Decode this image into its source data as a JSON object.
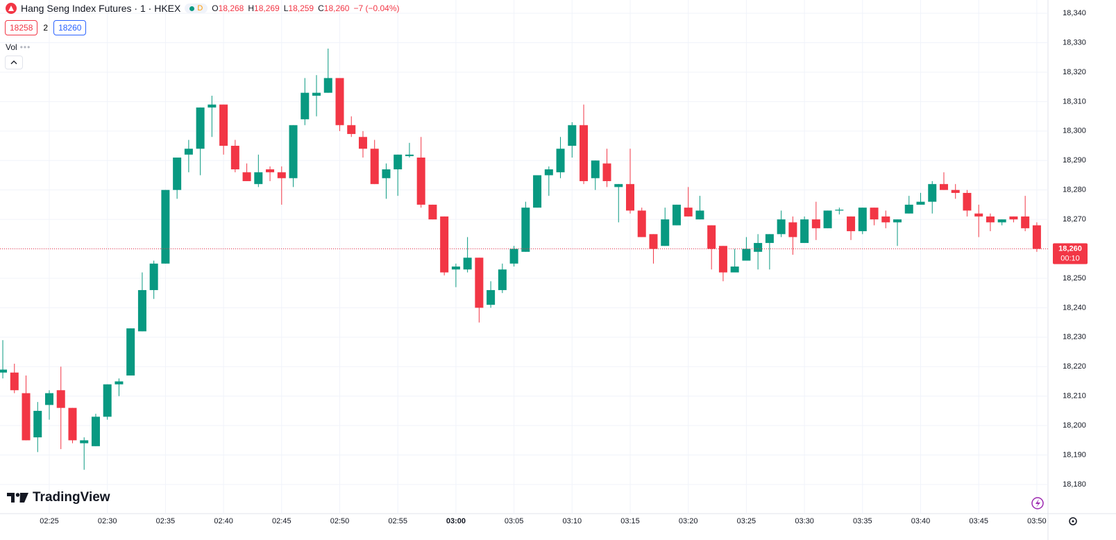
{
  "header": {
    "title": "Hang Seng Index Futures · 1 · HKEX",
    "badge": "D",
    "ohlc": [
      {
        "key": "O",
        "value": "18,268"
      },
      {
        "key": "H",
        "value": "18,269"
      },
      {
        "key": "L",
        "value": "18,259"
      },
      {
        "key": "C",
        "value": "18,260"
      }
    ],
    "change": "−7 (−0.04%)"
  },
  "trade": {
    "sell": "18258",
    "spread": "2",
    "buy": "18260"
  },
  "indicator": "Vol",
  "logo": "TradingView",
  "chart_data": {
    "type": "candlestick",
    "categories": [
      null,
      null,
      null,
      null,
      "02:25",
      null,
      null,
      null,
      null,
      "02:30",
      null,
      null,
      null,
      null,
      "02:35",
      null,
      null,
      null,
      null,
      "02:40",
      null,
      null,
      null,
      null,
      "02:45",
      null,
      null,
      null,
      null,
      "02:50",
      null,
      null,
      null,
      null,
      "02:55",
      null,
      null,
      null,
      null,
      "03:00",
      null,
      null,
      null,
      null,
      "03:05",
      null,
      null,
      null,
      null,
      "03:10",
      null,
      null,
      null,
      null,
      "03:15",
      null,
      null,
      null,
      null,
      "03:20",
      null,
      null,
      null,
      null,
      "03:25",
      null,
      null,
      null,
      null,
      "03:30",
      null,
      null,
      null,
      null,
      "03:35",
      null,
      null,
      null,
      null,
      "03:40",
      null,
      null,
      null,
      null,
      "03:45",
      null,
      null,
      null,
      null,
      "03:50"
    ],
    "open": [
      18218,
      18218,
      18211,
      18196,
      18207,
      18212,
      18206,
      18194,
      18193,
      18203,
      18214,
      18217,
      18232,
      18246,
      18255,
      18280,
      18292,
      18294,
      18308,
      18309,
      18295,
      18286,
      18282,
      18287,
      18286,
      18284,
      18304,
      18312,
      18313,
      18318,
      18302,
      18298,
      18294,
      18284,
      18287,
      18291.5,
      18291,
      18275,
      18271,
      18253,
      18253,
      18257,
      18241,
      18246,
      18255,
      18259,
      18274,
      18285,
      18286,
      18295,
      18302,
      18284,
      18289,
      18281,
      18282,
      18273,
      18265,
      18261,
      18268,
      18274,
      18270,
      18268,
      18261,
      18252,
      18256,
      18259,
      18262,
      18265,
      18269,
      18262,
      18270,
      18267,
      18273,
      18271,
      18266,
      18274,
      18271,
      18269,
      18272,
      18275,
      18276,
      18282,
      18280,
      18279,
      18272,
      18271,
      18269,
      18271,
      18271,
      18268
    ],
    "high": [
      18229,
      18221,
      18217,
      18208,
      18212,
      18220,
      18206,
      18196,
      18204,
      18214,
      18216,
      18233,
      18252,
      18256,
      18280,
      18291,
      18297,
      18308,
      18312,
      18309,
      18297,
      18289,
      18292,
      18288,
      18288,
      18302,
      18318,
      18319,
      18328,
      18318,
      18305,
      18300,
      18297,
      18289,
      18292,
      18296,
      18298,
      18275,
      18271,
      18255,
      18264,
      18257,
      18249,
      18255,
      18261,
      18276,
      18285,
      18288,
      18298,
      18303,
      18309,
      18290,
      18294,
      18282,
      18294,
      18274,
      18265,
      18274,
      18275,
      18281,
      18278,
      18268,
      18261,
      18260,
      18264,
      18265,
      18265,
      18273,
      18271,
      18271,
      18276,
      18273,
      18274,
      18271,
      18274,
      18274,
      18273,
      18270,
      18278,
      18279,
      18283,
      18286,
      18282,
      18280,
      18275,
      18272,
      18270,
      18271,
      18278,
      18269
    ],
    "low": [
      18216,
      18211,
      18195,
      18191,
      18202,
      18192,
      18194,
      18185,
      18193,
      18202,
      18210,
      18217,
      18232,
      18243,
      18255,
      18277,
      18286,
      18285,
      18298,
      18292,
      18286,
      18283,
      18281,
      18283,
      18275,
      18281,
      18302,
      18305,
      18313,
      18300,
      18298,
      18291,
      18282,
      18277,
      18278,
      18291,
      18274,
      18270,
      18251,
      18247,
      18252,
      18235,
      18240,
      18245,
      18254,
      18259,
      18274,
      18278,
      18284,
      18291,
      18282,
      18280,
      18281,
      18269,
      18272,
      18264,
      18255,
      18261,
      18268,
      18271,
      18270,
      18253,
      18249,
      18252,
      18256,
      18253,
      18253,
      18264,
      18258,
      18262,
      18263,
      18267,
      18271.7,
      18263,
      18265,
      18268,
      18267,
      18261,
      18272,
      18275,
      18272,
      18280,
      18277,
      18271,
      18264,
      18266,
      18268,
      18269,
      18266,
      18259
    ],
    "close": [
      18219,
      18212,
      18195,
      18205,
      18211,
      18206,
      18195,
      18195,
      18203,
      18214,
      18215,
      18233,
      18246,
      18255,
      18280,
      18291,
      18294,
      18308,
      18309,
      18295,
      18287,
      18283,
      18286,
      18286,
      18284,
      18302,
      18313,
      18313,
      18318,
      18302,
      18299,
      18294,
      18282,
      18287,
      18292,
      18292,
      18275,
      18270,
      18252,
      18254,
      18257,
      18240,
      18246,
      18253,
      18260,
      18274,
      18285,
      18287,
      18294,
      18302,
      18283,
      18290,
      18283,
      18282,
      18273,
      18264,
      18260,
      18270,
      18275,
      18271,
      18273,
      18260,
      18252,
      18254,
      18260,
      18262,
      18265,
      18270,
      18264,
      18270,
      18267,
      18273,
      18273.3,
      18266,
      18274,
      18270,
      18269,
      18270,
      18275,
      18276,
      18282,
      18280,
      18279,
      18273,
      18271,
      18269,
      18270,
      18270,
      18267,
      18260
    ],
    "up_color": "#089981",
    "down_color": "#f23645",
    "ylim": [
      18170.1,
      18344.5
    ],
    "yticks": [
      {
        "value": 18180,
        "label": "18,180"
      },
      {
        "value": 18190,
        "label": "18,190"
      },
      {
        "value": 18200,
        "label": "18,200"
      },
      {
        "value": 18210,
        "label": "18,210"
      },
      {
        "value": 18220,
        "label": "18,220"
      },
      {
        "value": 18230,
        "label": "18,230"
      },
      {
        "value": 18240,
        "label": "18,240"
      },
      {
        "value": 18250,
        "label": "18,250"
      },
      {
        "value": 18260,
        "label": "18,260"
      },
      {
        "value": 18270,
        "label": "18,270"
      },
      {
        "value": 18280,
        "label": "18,280"
      },
      {
        "value": 18290,
        "label": "18,290"
      },
      {
        "value": 18300,
        "label": "18,300"
      },
      {
        "value": 18310,
        "label": "18,310"
      },
      {
        "value": 18320,
        "label": "18,320"
      },
      {
        "value": 18330,
        "label": "18,330"
      },
      {
        "value": 18340,
        "label": "18,340"
      }
    ],
    "grid": true,
    "last_price": {
      "value": 18260,
      "label": "18,260"
    },
    "countdown": "00:10"
  }
}
